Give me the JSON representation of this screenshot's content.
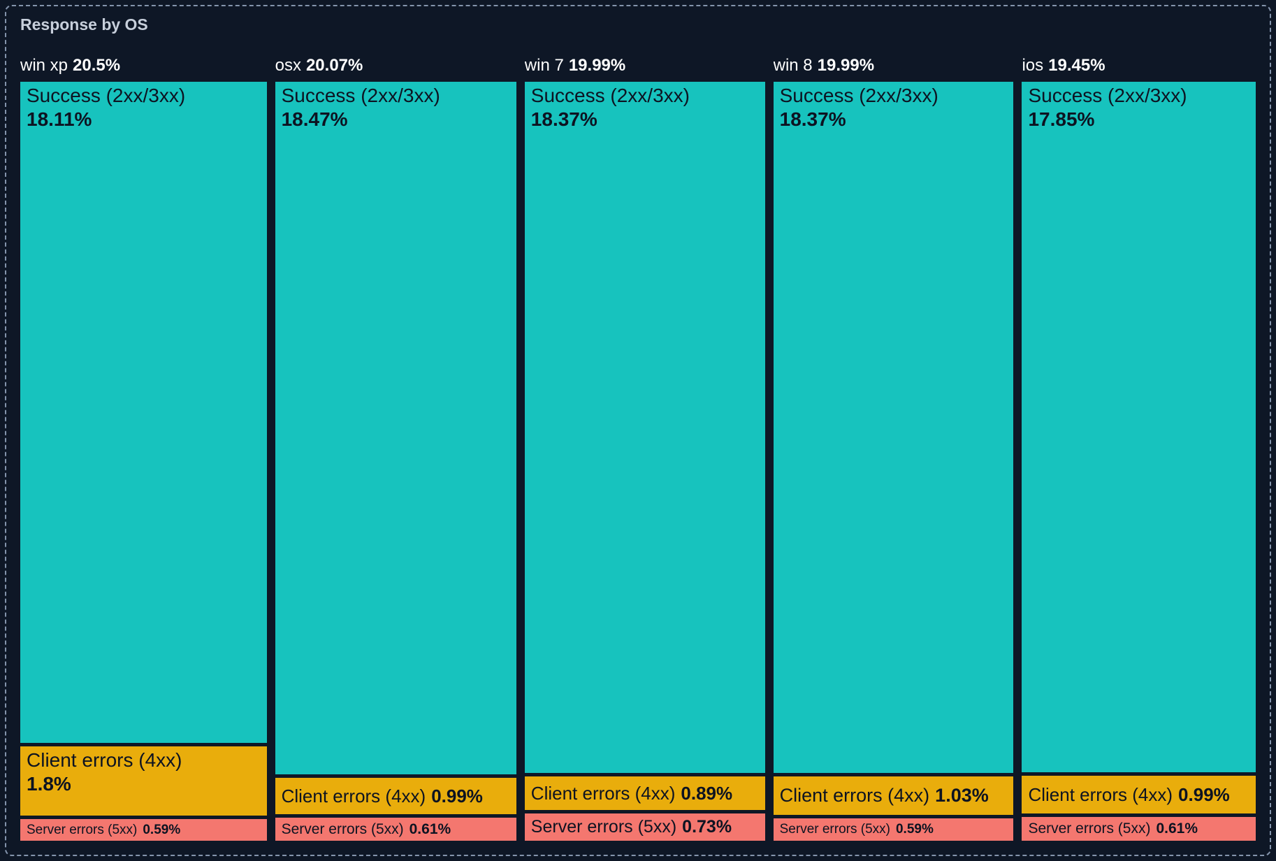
{
  "panel": {
    "title": "Response by OS"
  },
  "chart_data": {
    "type": "treemap",
    "title": "Response by OS",
    "unit": "%",
    "layout": "one column per OS, column width proportional to OS total share, segment height proportional to segment share",
    "colors": {
      "success": "#17C3BE",
      "client": "#E9AD0C",
      "server": "#F4776F",
      "background": "#0E1726",
      "label_on_block": "#0D1321",
      "header_text": "#FFFFFF",
      "title_text": "#C7CFDB",
      "border": "#8494AC"
    },
    "columns": [
      {
        "name": "win xp",
        "total_pct": 20.5,
        "total_label": "20.5%",
        "segments": [
          {
            "kind": "success",
            "label": "Success (2xx/3xx)",
            "pct": 18.11,
            "pct_label": "18.11%",
            "two_line": true,
            "font_px": 28
          },
          {
            "kind": "client",
            "label": "Client errors (4xx)",
            "pct": 1.8,
            "pct_label": "1.8%",
            "two_line": true,
            "font_px": 28
          },
          {
            "kind": "server",
            "label": "Server errors (5xx)",
            "pct": 0.59,
            "pct_label": "0.59%",
            "two_line": false,
            "font_px": 19
          }
        ]
      },
      {
        "name": "osx",
        "total_pct": 20.07,
        "total_label": "20.07%",
        "segments": [
          {
            "kind": "success",
            "label": "Success (2xx/3xx)",
            "pct": 18.47,
            "pct_label": "18.47%",
            "two_line": true,
            "font_px": 28
          },
          {
            "kind": "client",
            "label": "Client errors (4xx)",
            "pct": 0.99,
            "pct_label": "0.99%",
            "two_line": false,
            "font_px": 26
          },
          {
            "kind": "server",
            "label": "Server errors (5xx)",
            "pct": 0.61,
            "pct_label": "0.61%",
            "two_line": false,
            "font_px": 21
          }
        ]
      },
      {
        "name": "win 7",
        "total_pct": 19.99,
        "total_label": "19.99%",
        "segments": [
          {
            "kind": "success",
            "label": "Success (2xx/3xx)",
            "pct": 18.37,
            "pct_label": "18.37%",
            "two_line": true,
            "font_px": 28
          },
          {
            "kind": "client",
            "label": "Client errors (4xx)",
            "pct": 0.89,
            "pct_label": "0.89%",
            "two_line": false,
            "font_px": 26
          },
          {
            "kind": "server",
            "label": "Server errors (5xx)",
            "pct": 0.73,
            "pct_label": "0.73%",
            "two_line": false,
            "font_px": 25
          }
        ]
      },
      {
        "name": "win 8",
        "total_pct": 19.99,
        "total_label": "19.99%",
        "segments": [
          {
            "kind": "success",
            "label": "Success (2xx/3xx)",
            "pct": 18.37,
            "pct_label": "18.37%",
            "two_line": true,
            "font_px": 28
          },
          {
            "kind": "client",
            "label": "Client errors (4xx)",
            "pct": 1.03,
            "pct_label": "1.03%",
            "two_line": false,
            "font_px": 27
          },
          {
            "kind": "server",
            "label": "Server errors (5xx)",
            "pct": 0.59,
            "pct_label": "0.59%",
            "two_line": false,
            "font_px": 19
          }
        ]
      },
      {
        "name": "ios",
        "total_pct": 19.45,
        "total_label": "19.45%",
        "segments": [
          {
            "kind": "success",
            "label": "Success (2xx/3xx)",
            "pct": 17.85,
            "pct_label": "17.85%",
            "two_line": true,
            "font_px": 28
          },
          {
            "kind": "client",
            "label": "Client errors (4xx)",
            "pct": 0.99,
            "pct_label": "0.99%",
            "two_line": false,
            "font_px": 26
          },
          {
            "kind": "server",
            "label": "Server errors (5xx)",
            "pct": 0.61,
            "pct_label": "0.61%",
            "two_line": false,
            "font_px": 21
          }
        ]
      }
    ]
  }
}
